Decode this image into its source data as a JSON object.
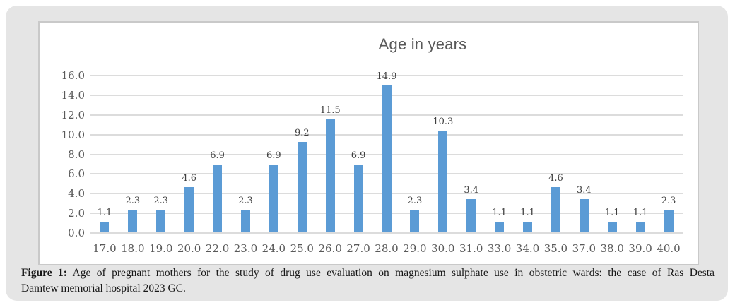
{
  "figure": {
    "caption_label": "Figure 1:",
    "caption_rest1": " Age of pregnant mothers for the study of drug use evaluation on magnesium sulphate use in obstetric wards: the case of Ras Desta",
    "caption_line2": "Damtew memorial hospital 2023 GC."
  },
  "chart_data": {
    "type": "bar",
    "title": "Age in years",
    "categories": [
      "17.0",
      "18.0",
      "19.0",
      "20.0",
      "22.0",
      "23.0",
      "24.0",
      "25.0",
      "26.0",
      "27.0",
      "28.0",
      "29.0",
      "30.0",
      "31.0",
      "33.0",
      "34.0",
      "35.0",
      "37.0",
      "38.0",
      "39.0",
      "40.0"
    ],
    "values": [
      1.1,
      2.3,
      2.3,
      4.6,
      6.9,
      2.3,
      6.9,
      9.2,
      11.5,
      6.9,
      14.9,
      2.3,
      10.3,
      3.4,
      1.1,
      1.1,
      4.6,
      3.4,
      1.1,
      1.1,
      2.3
    ],
    "y_ticks": [
      "0.0",
      "2.0",
      "4.0",
      "6.0",
      "8.0",
      "10.0",
      "12.0",
      "14.0",
      "16.0"
    ],
    "ylim": [
      0,
      16
    ],
    "xlabel": "",
    "ylabel": "",
    "grid": true,
    "legend": "none",
    "bar_color": "#5b9bd5",
    "gridline_color": "#dcdcdc",
    "axis_label_color": "#595959",
    "data_label_color": "#3f3f3f",
    "title_color": "#595959"
  }
}
